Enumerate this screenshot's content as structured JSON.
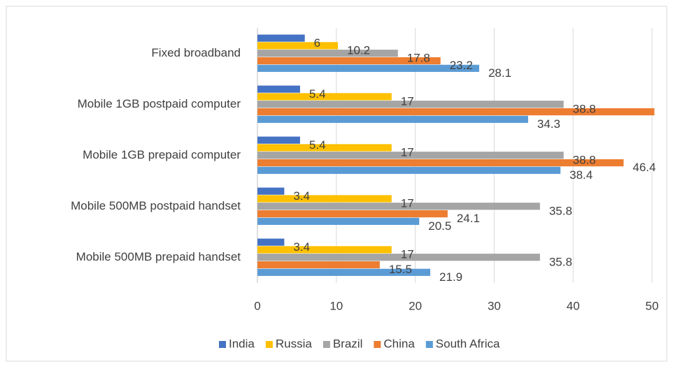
{
  "chart_data": {
    "type": "barh",
    "categories": [
      "Fixed broadband",
      "Mobile 1GB postpaid computer",
      "Mobile 1GB prepaid computer",
      "Mobile 500MB postpaid handset",
      "Mobile 500MB prepaid handset"
    ],
    "series": [
      {
        "name": "India",
        "color": "#4472c4",
        "values": [
          6,
          5.4,
          5.4,
          3.4,
          3.4
        ]
      },
      {
        "name": "Russia",
        "color": "#ffc000",
        "values": [
          10.2,
          17,
          17,
          17,
          17
        ]
      },
      {
        "name": "Brazil",
        "color": "#a5a5a5",
        "values": [
          17.8,
          38.8,
          38.8,
          35.8,
          35.8
        ]
      },
      {
        "name": "China",
        "color": "#ed7d31",
        "values": [
          23.2,
          50.3,
          46.4,
          24.1,
          15.5
        ]
      },
      {
        "name": "South Africa",
        "color": "#5b9bd5",
        "values": [
          28.1,
          34.3,
          38.4,
          20.5,
          21.9
        ]
      }
    ],
    "xlim": [
      0,
      50
    ],
    "xticks": [
      0,
      10,
      20,
      30,
      40,
      50
    ],
    "grid": true,
    "legend": "bottom"
  }
}
